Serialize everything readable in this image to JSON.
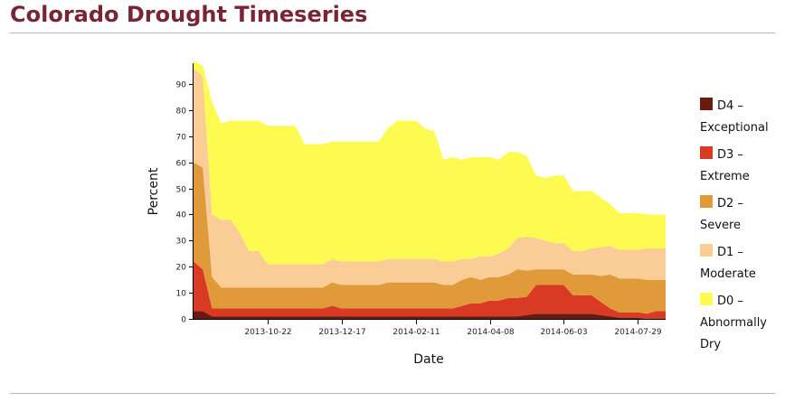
{
  "page": {
    "title": "Colorado Drought Timeseries"
  },
  "colors": {
    "D4": "#6b1a10",
    "D3": "#d93a24",
    "D2": "#e09a3a",
    "D1": "#f9cd95",
    "D0": "#fdfb52",
    "axis": "#000000"
  },
  "chart_data": {
    "type": "area",
    "stacked": true,
    "xlabel": "Date",
    "ylabel": "Percent",
    "ylim": [
      0,
      98
    ],
    "yticks": [
      0,
      10,
      20,
      30,
      40,
      50,
      60,
      70,
      80,
      90
    ],
    "xtick_labels": [
      "2013-10-22",
      "2013-12-17",
      "2014-02-11",
      "2014-04-08",
      "2014-06-03",
      "2014-07-29"
    ],
    "xtick_dates": [
      "2013-10-22",
      "2013-12-17",
      "2014-02-11",
      "2014-04-08",
      "2014-06-03",
      "2014-07-29"
    ],
    "x": [
      "2013-08-27",
      "2013-09-03",
      "2013-09-10",
      "2013-09-17",
      "2013-09-24",
      "2013-10-01",
      "2013-10-08",
      "2013-10-15",
      "2013-10-22",
      "2013-10-29",
      "2013-11-05",
      "2013-11-12",
      "2013-11-19",
      "2013-11-26",
      "2013-12-03",
      "2013-12-10",
      "2013-12-17",
      "2013-12-24",
      "2013-12-31",
      "2014-01-07",
      "2014-01-14",
      "2014-01-21",
      "2014-01-28",
      "2014-02-04",
      "2014-02-11",
      "2014-02-18",
      "2014-02-25",
      "2014-03-04",
      "2014-03-11",
      "2014-03-18",
      "2014-03-25",
      "2014-04-01",
      "2014-04-08",
      "2014-04-15",
      "2014-04-22",
      "2014-04-29",
      "2014-05-06",
      "2014-05-13",
      "2014-05-20",
      "2014-05-27",
      "2014-06-03",
      "2014-06-10",
      "2014-06-17",
      "2014-06-24",
      "2014-07-01",
      "2014-07-08",
      "2014-07-15",
      "2014-07-22",
      "2014-07-29",
      "2014-08-05",
      "2014-08-12",
      "2014-08-19"
    ],
    "series": [
      {
        "name": "D4 - Exceptional",
        "values": [
          3,
          3,
          1,
          1,
          1,
          1,
          1,
          1,
          1,
          1,
          1,
          1,
          1,
          1,
          1,
          1,
          1,
          1,
          1,
          1,
          1,
          1,
          1,
          1,
          1,
          1,
          1,
          1,
          1,
          1,
          1,
          1,
          1,
          1,
          1,
          1,
          1.5,
          2,
          2,
          2,
          2,
          2,
          2,
          2,
          1.5,
          1,
          0.5,
          0.5,
          0.5,
          0,
          0,
          0
        ]
      },
      {
        "name": "D3 - Extreme",
        "values": [
          19,
          16,
          3,
          3,
          3,
          3,
          3,
          3,
          3,
          3,
          3,
          3,
          3,
          3,
          3,
          4,
          3,
          3,
          3,
          3,
          3,
          3,
          3,
          3,
          3,
          3,
          3,
          3,
          3,
          4,
          5,
          5,
          6,
          6,
          7,
          7,
          7,
          11,
          11,
          11,
          11,
          7,
          7,
          7,
          5,
          3,
          2,
          2,
          2,
          2,
          3,
          3
        ]
      },
      {
        "name": "D2 - Severe",
        "values": [
          38,
          39,
          12,
          8,
          8,
          8,
          8,
          8,
          8,
          8,
          8,
          8,
          8,
          8,
          8,
          9,
          9,
          9,
          9,
          9,
          9,
          10,
          10,
          10,
          10,
          10,
          10,
          9,
          9,
          10,
          10,
          9,
          9,
          9,
          9,
          11,
          10,
          6,
          6,
          6,
          6,
          8,
          8,
          8,
          10,
          13,
          13,
          13,
          13,
          13,
          12,
          12
        ]
      },
      {
        "name": "D1 - Moderate",
        "values": [
          36,
          35,
          24,
          26,
          26,
          21,
          14,
          14,
          9,
          9,
          9,
          9,
          9,
          9,
          9,
          9,
          9,
          9,
          9,
          9,
          9,
          9,
          9,
          9,
          9,
          9,
          9,
          9,
          9,
          8,
          7,
          9,
          8,
          9,
          10,
          12,
          13,
          12,
          11,
          10,
          10,
          9,
          9,
          10,
          11,
          11,
          11,
          11,
          11,
          12,
          12,
          12
        ]
      },
      {
        "name": "D0 - Abnormally Dry",
        "values": [
          3,
          4,
          43,
          37,
          38,
          43,
          50,
          50,
          53,
          53,
          53,
          53,
          46,
          46,
          46,
          45,
          46,
          46,
          46,
          46,
          46,
          50,
          53,
          53,
          53,
          50,
          49,
          39,
          40,
          38,
          39,
          38,
          38,
          36,
          37,
          33,
          31,
          24,
          24,
          26,
          26,
          23,
          23,
          22,
          19,
          16,
          14,
          14,
          14,
          13,
          13,
          13
        ]
      }
    ]
  },
  "legend": {
    "items": [
      {
        "key": "D4",
        "line1": "D4 –",
        "line2": "Exceptional"
      },
      {
        "key": "D3",
        "line1": "D3 –",
        "line2": "Extreme"
      },
      {
        "key": "D2",
        "line1": "D2 –",
        "line2": "Severe"
      },
      {
        "key": "D1",
        "line1": "D1 –",
        "line2": "Moderate"
      },
      {
        "key": "D0",
        "line1": "D0 –",
        "line2": "Abnormally",
        "line3": "Dry"
      }
    ]
  }
}
